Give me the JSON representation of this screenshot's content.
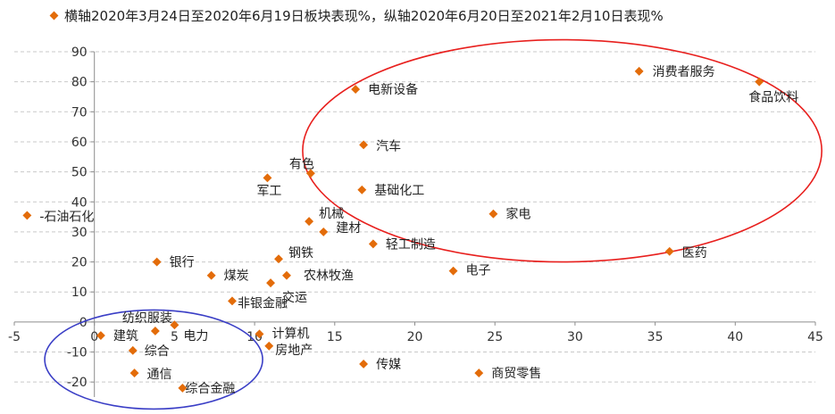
{
  "chart_data": {
    "type": "scatter",
    "legend": {
      "label": "横轴2020年3月24日至2020年6月19日板块表现%，纵轴2020年6月20日至2021年2月10日表现%",
      "placement": "top"
    },
    "marker_color": "#E36C0A",
    "xlim": [
      -5,
      45
    ],
    "ylim": [
      -25,
      90
    ],
    "x_ticks": [
      -5,
      0,
      5,
      10,
      15,
      20,
      25,
      30,
      35,
      40,
      45
    ],
    "y_ticks": [
      -20,
      -10,
      0,
      10,
      20,
      30,
      40,
      50,
      60,
      70,
      80,
      90
    ],
    "grid": "horizontal-dashed",
    "points": [
      {
        "name": "消费者服务",
        "x": 34.0,
        "y": 83.5
      },
      {
        "name": "食品饮料",
        "x": 41.5,
        "y": 80.0
      },
      {
        "name": "电新设备",
        "x": 16.3,
        "y": 77.5
      },
      {
        "name": "汽车",
        "x": 16.8,
        "y": 59.0
      },
      {
        "name": "有色",
        "x": 13.5,
        "y": 49.5
      },
      {
        "name": "军工",
        "x": 10.8,
        "y": 48.0
      },
      {
        "name": "基础化工",
        "x": 16.7,
        "y": 44.0
      },
      {
        "name": "-石油石化",
        "x": -4.2,
        "y": 35.5
      },
      {
        "name": "家电",
        "x": 24.9,
        "y": 36.0
      },
      {
        "name": "机械",
        "x": 13.4,
        "y": 33.5
      },
      {
        "name": "建材",
        "x": 14.3,
        "y": 30.0
      },
      {
        "name": "轻工制造",
        "x": 17.4,
        "y": 26.0
      },
      {
        "name": "医药",
        "x": 35.9,
        "y": 23.5
      },
      {
        "name": "钢铁",
        "x": 11.5,
        "y": 21.0
      },
      {
        "name": "银行",
        "x": 3.9,
        "y": 20.0
      },
      {
        "name": "电子",
        "x": 22.4,
        "y": 17.0
      },
      {
        "name": "煤炭",
        "x": 7.3,
        "y": 15.5
      },
      {
        "name": "农林牧渔",
        "x": 12.0,
        "y": 15.5
      },
      {
        "name": "交运",
        "x": 11.0,
        "y": 13.0
      },
      {
        "name": "非银金融",
        "x": 8.6,
        "y": 7.0
      },
      {
        "name": "纺织服装",
        "x": 3.8,
        "y": -3.0
      },
      {
        "name": "电力",
        "x": 5.0,
        "y": -1.0
      },
      {
        "name": "建筑",
        "x": 0.4,
        "y": -4.5
      },
      {
        "name": "计算机",
        "x": 10.3,
        "y": -4.0
      },
      {
        "name": "综合",
        "x": 2.4,
        "y": -9.5
      },
      {
        "name": "房地产",
        "x": 10.9,
        "y": -8.0
      },
      {
        "name": "通信",
        "x": 2.5,
        "y": -17.0
      },
      {
        "name": "传媒",
        "x": 16.8,
        "y": -14.0
      },
      {
        "name": "商贸零售",
        "x": 24.0,
        "y": -17.0
      },
      {
        "name": "综合金融",
        "x": 5.5,
        "y": -22.0
      }
    ],
    "annotations": [
      {
        "type": "ellipse",
        "color": "#E8201E",
        "cx": 29.2,
        "cy": 57.0,
        "rx": 16.2,
        "ry": 37.0
      },
      {
        "type": "ellipse",
        "color": "#3A3EC6",
        "cx": 3.7,
        "cy": -12.5,
        "rx": 6.8,
        "ry": 16.5
      }
    ]
  }
}
